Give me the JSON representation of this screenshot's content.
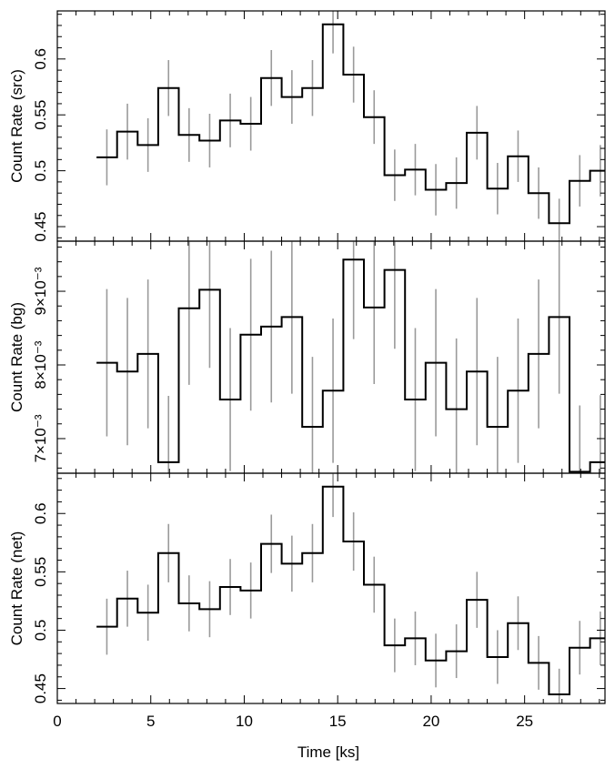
{
  "chart_data": [
    {
      "type": "line",
      "panel": "src",
      "ylabel": "Count Rate (src)",
      "xlabel": "",
      "xlim": [
        0,
        29.3
      ],
      "ylim": [
        0.437,
        0.643
      ],
      "yticks": [
        0.45,
        0.5,
        0.55,
        0.6
      ],
      "ytick_labels": [
        "0.45",
        "0.5",
        "0.55",
        "0.6"
      ],
      "bin_width": 1.1,
      "x": [
        2.65,
        3.75,
        4.85,
        5.95,
        7.05,
        8.15,
        9.25,
        10.35,
        11.45,
        12.55,
        13.65,
        14.75,
        15.85,
        16.95,
        18.05,
        19.15,
        20.25,
        21.35,
        22.45,
        23.55,
        24.65,
        25.75,
        26.85,
        27.95
      ],
      "y": [
        0.512,
        0.535,
        0.523,
        0.574,
        0.532,
        0.527,
        0.545,
        0.542,
        0.583,
        0.566,
        0.574,
        0.631,
        0.586,
        0.548,
        0.496,
        0.501,
        0.483,
        0.489,
        0.534,
        0.484,
        0.513,
        0.48,
        0.453,
        0.491
      ],
      "y_err": [
        0.025,
        0.025,
        0.024,
        0.025,
        0.024,
        0.024,
        0.024,
        0.024,
        0.025,
        0.024,
        0.025,
        0.026,
        0.025,
        0.024,
        0.023,
        0.023,
        0.023,
        0.023,
        0.024,
        0.023,
        0.023,
        0.023,
        0.022,
        0.023
      ],
      "last_bin": {
        "x": 29.05,
        "y": 0.5,
        "y_err": 0.023
      }
    },
    {
      "type": "line",
      "panel": "bg",
      "ylabel": "Count Rate (bg)",
      "xlabel": "",
      "xlim": [
        0,
        29.3
      ],
      "ylim": [
        0.00653,
        0.00968
      ],
      "yticks": [
        0.007,
        0.008,
        0.009
      ],
      "ytick_labels": [
        "7×10⁻³",
        "8×10⁻³",
        "9×10⁻³"
      ],
      "bin_width": 1.1,
      "x": [
        2.65,
        3.75,
        4.85,
        5.95,
        7.05,
        8.15,
        9.25,
        10.35,
        11.45,
        12.55,
        13.65,
        14.75,
        15.85,
        16.95,
        18.05,
        19.15,
        20.25,
        21.35,
        22.45,
        23.55,
        24.65,
        25.75,
        26.85,
        27.95
      ],
      "y": [
        0.00803,
        0.00791,
        0.00815,
        0.00668,
        0.00877,
        0.00902,
        0.00753,
        0.00841,
        0.00852,
        0.00865,
        0.00716,
        0.00765,
        0.00943,
        0.00878,
        0.00929,
        0.00753,
        0.00803,
        0.0074,
        0.00791,
        0.00716,
        0.00765,
        0.00815,
        0.00865,
        0.00655
      ],
      "y_err": [
        0.001,
        0.001,
        0.00101,
        0.0009,
        0.00104,
        0.00106,
        0.00097,
        0.00103,
        0.00103,
        0.00104,
        0.00095,
        0.00098,
        0.00108,
        0.00104,
        0.00107,
        0.00097,
        0.001,
        0.00096,
        0.001,
        0.00095,
        0.00098,
        0.00101,
        0.00104,
        0.0009
      ],
      "last_bin": {
        "x": 29.05,
        "y": 0.00668,
        "y_err": 0.00091
      }
    },
    {
      "type": "line",
      "panel": "net",
      "ylabel": "Count Rate (net)",
      "xlabel": "Time [ks]",
      "xlim": [
        0,
        29.3
      ],
      "ylim": [
        0.4372,
        0.6345
      ],
      "xticks": [
        0,
        5,
        10,
        15,
        20,
        25
      ],
      "xtick_labels": [
        "0",
        "5",
        "10",
        "15",
        "20",
        "25"
      ],
      "yticks": [
        0.45,
        0.5,
        0.55,
        0.6
      ],
      "ytick_labels": [
        "0.45",
        "0.5",
        "0.55",
        "0.6"
      ],
      "bin_width": 1.1,
      "x": [
        2.65,
        3.75,
        4.85,
        5.95,
        7.05,
        8.15,
        9.25,
        10.35,
        11.45,
        12.55,
        13.65,
        14.75,
        15.85,
        16.95,
        18.05,
        19.15,
        20.25,
        21.35,
        22.45,
        23.55,
        24.65,
        25.75,
        26.85,
        27.95
      ],
      "y": [
        0.503,
        0.527,
        0.515,
        0.566,
        0.523,
        0.518,
        0.537,
        0.534,
        0.574,
        0.557,
        0.566,
        0.623,
        0.576,
        0.539,
        0.487,
        0.493,
        0.474,
        0.482,
        0.526,
        0.477,
        0.506,
        0.472,
        0.445,
        0.485
      ],
      "y_err": [
        0.024,
        0.024,
        0.024,
        0.025,
        0.024,
        0.024,
        0.024,
        0.024,
        0.025,
        0.024,
        0.025,
        0.026,
        0.025,
        0.024,
        0.023,
        0.023,
        0.023,
        0.023,
        0.024,
        0.023,
        0.023,
        0.023,
        0.022,
        0.023
      ],
      "last_bin": {
        "x": 29.05,
        "y": 0.493,
        "y_err": 0.023
      }
    }
  ],
  "colors": {
    "line": "#000000",
    "errorbar": "#9a9a9a",
    "axis": "#000000"
  }
}
